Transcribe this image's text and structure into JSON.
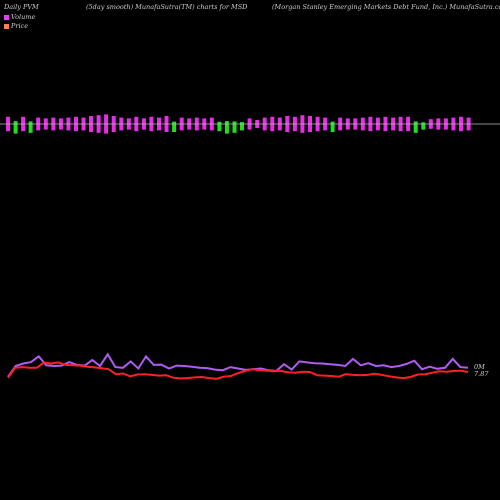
{
  "header": {
    "left": "Daily PVM",
    "middle_left": "(5day smooth) MunafaSutra(TM) charts for MSD",
    "right": "(Morgan  Stanley Emerging Markets Debt Fund,  Inc.) MunafaSutra.com"
  },
  "legend": {
    "volume": "Volume",
    "price": "Price",
    "volume_color": "#e040fb",
    "price_color": "#ff7f50"
  },
  "right_labels": {
    "volume_last": "0M",
    "price_last": "7.87"
  },
  "colors": {
    "background": "#000000",
    "bar_up": "#e62ee6",
    "bar_down": "#22dd22",
    "baseline": "#bbbbbb",
    "price_line": "#ff2020",
    "volume_line": "#b05cf0"
  },
  "chart_data": [
    {
      "type": "bar",
      "name": "volume-bars",
      "up_down": [
        "u",
        "d",
        "u",
        "d",
        "u",
        "u",
        "u",
        "u",
        "u",
        "u",
        "u",
        "u",
        "u",
        "u",
        "u",
        "u",
        "u",
        "u",
        "u",
        "u",
        "u",
        "u",
        "d",
        "u",
        "u",
        "u",
        "u",
        "u",
        "d",
        "d",
        "d",
        "d",
        "u",
        "u",
        "u",
        "u",
        "u",
        "u",
        "u",
        "u",
        "u",
        "u",
        "u",
        "d",
        "u",
        "u",
        "u",
        "u",
        "u",
        "u",
        "u",
        "u",
        "u",
        "u",
        "d",
        "d",
        "u",
        "u",
        "u",
        "u",
        "u",
        "u"
      ],
      "values": [
        0.9,
        1.2,
        0.9,
        1.1,
        0.8,
        0.7,
        0.8,
        0.7,
        0.8,
        0.9,
        0.8,
        1.0,
        1.1,
        1.2,
        1.0,
        0.8,
        0.7,
        0.9,
        0.7,
        0.9,
        0.8,
        1.0,
        1.0,
        0.8,
        0.7,
        0.8,
        0.7,
        0.8,
        0.9,
        1.2,
        1.1,
        0.8,
        0.7,
        0.5,
        0.8,
        0.9,
        0.8,
        1.0,
        0.9,
        1.1,
        1.0,
        0.9,
        0.8,
        1.0,
        0.8,
        0.7,
        0.7,
        0.8,
        0.9,
        0.8,
        0.9,
        0.8,
        0.9,
        0.9,
        1.1,
        0.7,
        0.6,
        0.7,
        0.7,
        0.8,
        0.9,
        0.8
      ]
    },
    {
      "type": "line",
      "name": "price-line",
      "values": [
        7.62,
        7.9,
        7.92,
        7.9,
        7.9,
        8.05,
        8.02,
        8.05,
        7.98,
        7.97,
        7.96,
        7.93,
        7.91,
        7.89,
        7.86,
        7.72,
        7.74,
        7.66,
        7.71,
        7.72,
        7.7,
        7.68,
        7.69,
        7.62,
        7.6,
        7.61,
        7.63,
        7.64,
        7.61,
        7.59,
        7.65,
        7.67,
        7.75,
        7.81,
        7.86,
        7.83,
        7.82,
        7.8,
        7.81,
        7.77,
        7.76,
        7.79,
        7.78,
        7.69,
        7.68,
        7.67,
        7.65,
        7.72,
        7.7,
        7.69,
        7.7,
        7.73,
        7.7,
        7.66,
        7.63,
        7.61,
        7.64,
        7.71,
        7.72,
        7.76,
        7.8,
        7.79,
        7.81,
        7.82,
        7.78
      ]
    },
    {
      "type": "line",
      "name": "volume-line",
      "values": [
        7.65,
        7.95,
        8.02,
        8.06,
        8.22,
        7.97,
        7.95,
        7.96,
        8.06,
        7.98,
        7.96,
        8.12,
        7.95,
        8.28,
        7.92,
        7.9,
        8.08,
        7.88,
        8.22,
        7.98,
        7.99,
        7.88,
        7.96,
        7.95,
        7.93,
        7.9,
        7.89,
        7.85,
        7.83,
        7.92,
        7.88,
        7.84,
        7.86,
        7.88,
        7.83,
        7.81,
        8.0,
        7.85,
        8.08,
        8.05,
        8.03,
        8.02,
        8.0,
        7.98,
        7.95,
        8.15,
        7.97,
        8.03,
        7.95,
        7.97,
        7.92,
        7.95,
        8.01,
        8.1,
        7.86,
        7.93,
        7.87,
        7.9,
        8.15,
        7.92,
        7.9
      ]
    }
  ]
}
